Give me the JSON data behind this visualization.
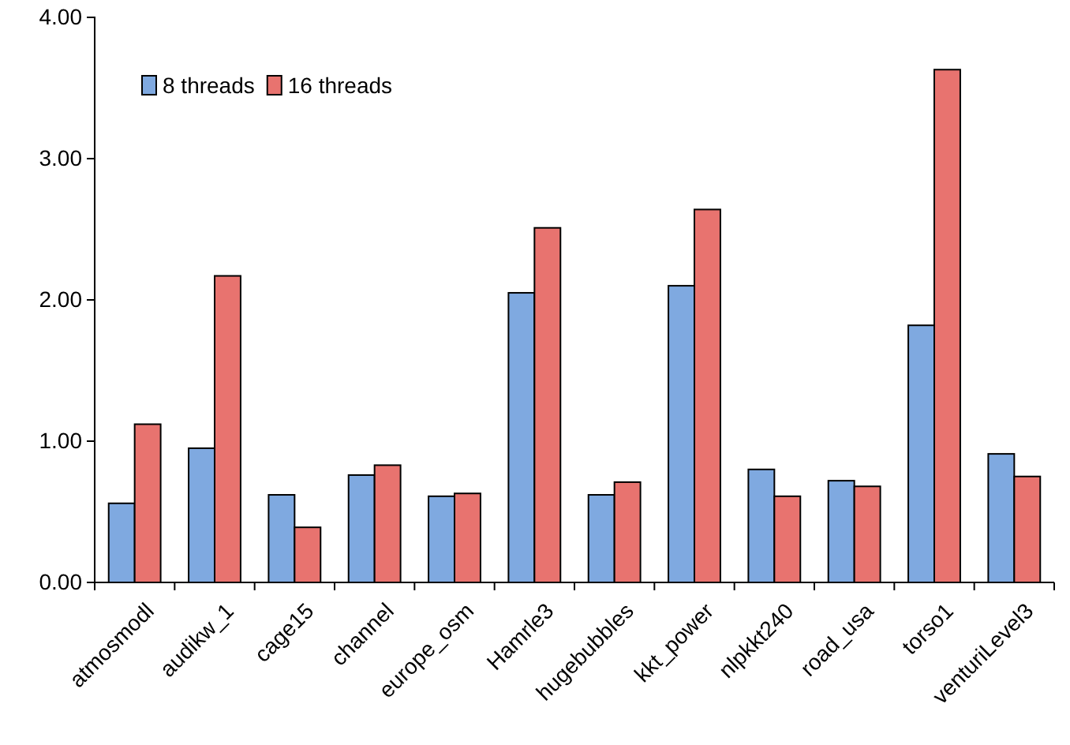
{
  "chart_data": {
    "type": "bar",
    "categories": [
      "atmosmodl",
      "audikw_1",
      "cage15",
      "channel",
      "europe_osm",
      "Hamrle3",
      "hugebubbles",
      "kkt_power",
      "nlpkkt240",
      "road_usa",
      "torso1",
      "venturiLevel3"
    ],
    "series": [
      {
        "name": "8 threads",
        "color": "#7fa9e0",
        "values": [
          0.56,
          0.95,
          0.62,
          0.76,
          0.61,
          2.05,
          0.62,
          2.1,
          0.8,
          0.72,
          1.82,
          0.91
        ]
      },
      {
        "name": "16 threads",
        "color": "#e8736f",
        "values": [
          1.12,
          2.17,
          0.39,
          0.83,
          0.63,
          2.51,
          0.71,
          2.64,
          0.61,
          0.68,
          3.63,
          0.75
        ]
      }
    ],
    "ylim": [
      0,
      4
    ],
    "yticks": [
      {
        "value": 0,
        "label": "0.00"
      },
      {
        "value": 1,
        "label": "1.00"
      },
      {
        "value": 2,
        "label": "2.00"
      },
      {
        "value": 3,
        "label": "3.00"
      },
      {
        "value": 4,
        "label": "4.00"
      }
    ],
    "grid": false,
    "legend": "top left"
  }
}
